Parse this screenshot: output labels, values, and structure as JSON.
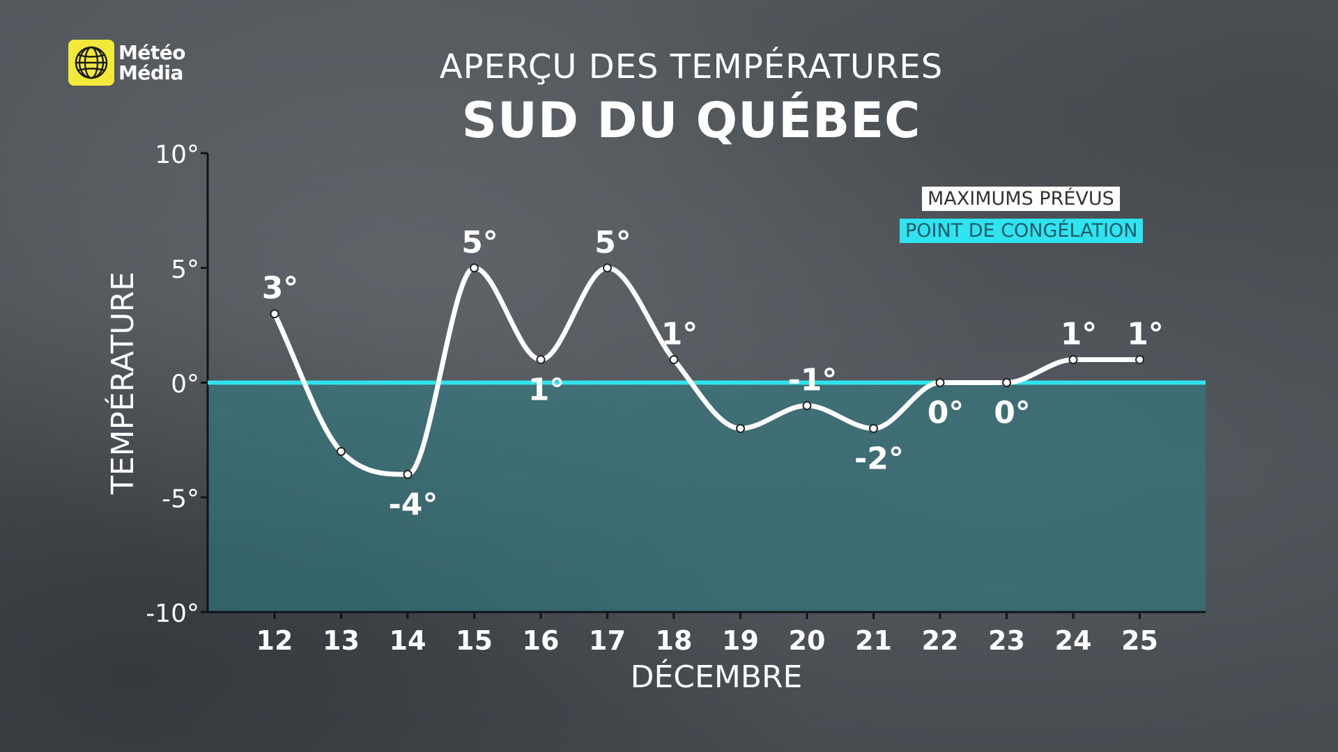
{
  "brand": {
    "line1": "Météo",
    "line2": "Média",
    "logo_icon": "globe-icon",
    "logo_color": "#f2e93a"
  },
  "header": {
    "subtitle": "APERÇU DES TEMPÉRATURES",
    "title": "SUD DU QUÉBEC"
  },
  "legend": {
    "max_label": "MAXIMUMS PRÉVUS",
    "freeze_label": "POINT DE CONGÉLATION"
  },
  "colors": {
    "line": "#ffffff",
    "freeze_line": "#2fe3f0",
    "below_zero_fill": "#2f7f88",
    "axis": "#111417"
  },
  "chart_data": {
    "type": "line",
    "title": "SUD DU QUÉBEC",
    "subtitle": "APERÇU DES TEMPÉRATURES",
    "xlabel": "DÉCEMBRE",
    "ylabel": "TEMPÉRATURE",
    "categories": [
      "12",
      "13",
      "14",
      "15",
      "16",
      "17",
      "18",
      "19",
      "20",
      "21",
      "22",
      "23",
      "24",
      "25"
    ],
    "series": [
      {
        "name": "MAXIMUMS PRÉVUS",
        "values": [
          3,
          -3,
          -4,
          5,
          1,
          5,
          1,
          -2,
          -1,
          -2,
          0,
          0,
          1,
          1
        ],
        "labels": [
          "3°",
          "",
          "-4°",
          "5°",
          "1°",
          "5°",
          "1°",
          "",
          "-1°",
          "-2°",
          "0°",
          "0°",
          "1°",
          "1°"
        ]
      }
    ],
    "reference_line": {
      "name": "POINT DE CONGÉLATION",
      "value": 0
    },
    "ylim": [
      -10,
      10
    ],
    "yticks": [
      10,
      5,
      0,
      -5,
      -10
    ],
    "ytick_labels": [
      "10°",
      "5°",
      "0°",
      "-5°",
      "-10°"
    ],
    "grid": false,
    "legend_position": "top-right"
  }
}
